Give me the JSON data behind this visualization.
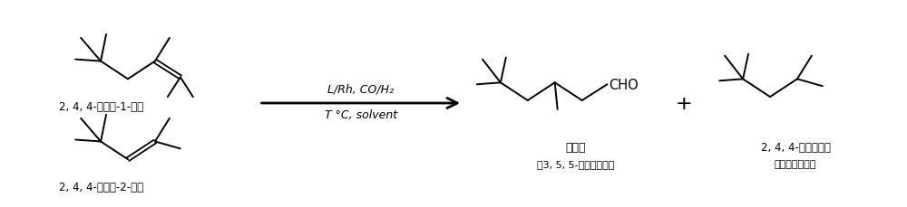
{
  "bg_color": "#ffffff",
  "line_color": "#000000",
  "text_color": "#000000",
  "fig_width": 10.0,
  "fig_height": 2.3,
  "dpi": 100,
  "label1": "2, 4, 4-三甲基-1-戊烯",
  "label2": "2, 4, 4-三甲基-2-戊烯",
  "arrow_label1": "L/Rh, CO/H₂",
  "arrow_label2": "T °C, solvent",
  "product1_label1": "异壬醒",
  "product1_label2": "（3, 5, 5-三甲基己醒）",
  "product2_label1": "2, 4, 4-三甲基戊烷",
  "product2_label2": "（氢化副产物）",
  "cho_label": "CHO",
  "plus_label": "+"
}
